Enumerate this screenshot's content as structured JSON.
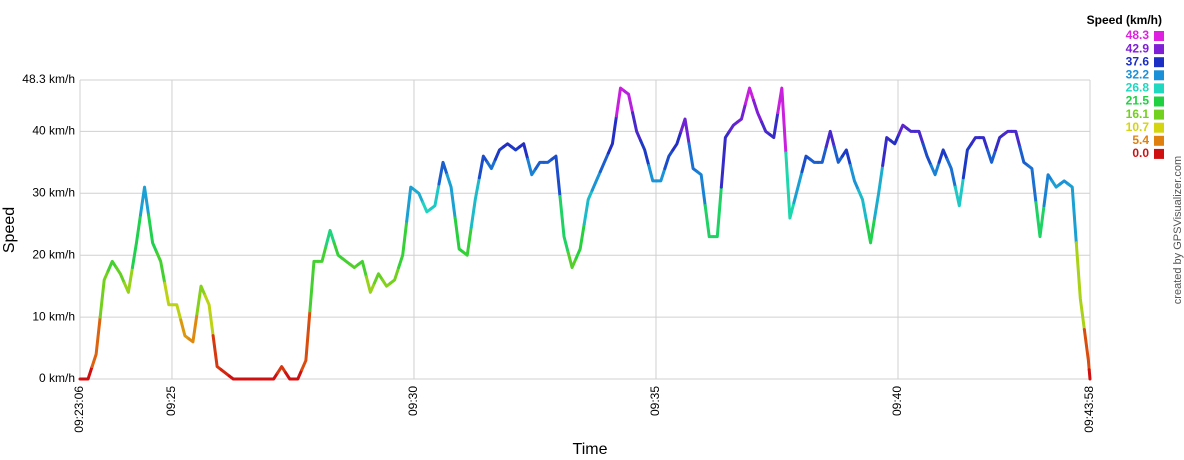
{
  "chart_data": {
    "type": "line",
    "x_label": "Time",
    "y_label": "Speed",
    "credit": "created by GPSVisualizer.com",
    "x": [
      "09:23:06",
      "09:23:16",
      "09:23:26",
      "09:23:36",
      "09:23:46",
      "09:23:56",
      "09:24:06",
      "09:24:16",
      "09:24:26",
      "09:24:36",
      "09:24:46",
      "09:24:56",
      "09:25:06",
      "09:25:16",
      "09:25:26",
      "09:25:36",
      "09:25:46",
      "09:25:56",
      "09:26:06",
      "09:26:16",
      "09:26:26",
      "09:26:36",
      "09:26:46",
      "09:26:56",
      "09:27:06",
      "09:27:16",
      "09:27:26",
      "09:27:36",
      "09:27:46",
      "09:27:56",
      "09:28:06",
      "09:28:16",
      "09:28:26",
      "09:28:36",
      "09:28:46",
      "09:28:56",
      "09:29:06",
      "09:29:16",
      "09:29:26",
      "09:29:36",
      "09:29:46",
      "09:29:56",
      "09:30:06",
      "09:30:16",
      "09:30:26",
      "09:30:36",
      "09:30:46",
      "09:30:56",
      "09:31:06",
      "09:31:16",
      "09:31:26",
      "09:31:36",
      "09:31:46",
      "09:31:56",
      "09:32:06",
      "09:32:16",
      "09:32:26",
      "09:32:36",
      "09:32:46",
      "09:32:56",
      "09:33:06",
      "09:33:16",
      "09:33:26",
      "09:33:36",
      "09:33:46",
      "09:33:56",
      "09:34:06",
      "09:34:16",
      "09:34:26",
      "09:34:36",
      "09:34:46",
      "09:34:56",
      "09:35:06",
      "09:35:16",
      "09:35:26",
      "09:35:36",
      "09:35:46",
      "09:35:56",
      "09:36:06",
      "09:36:16",
      "09:36:26",
      "09:36:36",
      "09:36:46",
      "09:36:56",
      "09:37:06",
      "09:37:16",
      "09:37:26",
      "09:37:36",
      "09:37:46",
      "09:37:56",
      "09:38:06",
      "09:38:16",
      "09:38:26",
      "09:38:36",
      "09:38:46",
      "09:38:56",
      "09:39:06",
      "09:39:16",
      "09:39:26",
      "09:39:36",
      "09:39:46",
      "09:39:56",
      "09:40:06",
      "09:40:16",
      "09:40:26",
      "09:40:36",
      "09:40:46",
      "09:40:56",
      "09:41:06",
      "09:41:16",
      "09:41:26",
      "09:41:36",
      "09:41:46",
      "09:41:56",
      "09:42:06",
      "09:42:16",
      "09:42:26",
      "09:42:36",
      "09:42:46",
      "09:42:56",
      "09:43:06",
      "09:43:16",
      "09:43:26",
      "09:43:36",
      "09:43:46",
      "09:43:56",
      "09:43:58"
    ],
    "values": [
      0,
      0,
      4,
      16,
      19,
      17,
      14,
      22,
      31,
      22,
      19,
      12,
      12,
      7,
      6,
      15,
      12,
      2,
      1,
      0,
      0,
      0,
      0,
      0,
      0,
      2,
      0,
      0,
      3,
      19,
      19,
      24,
      20,
      19,
      18,
      19,
      14,
      17,
      15,
      16,
      20,
      31,
      30,
      27,
      28,
      35,
      31,
      21,
      20,
      29,
      36,
      34,
      37,
      38,
      37,
      38,
      33,
      35,
      35,
      36,
      23,
      18,
      21,
      29,
      32,
      35,
      38,
      47,
      46,
      40,
      37,
      32,
      32,
      36,
      38,
      42,
      34,
      33,
      23,
      23,
      39,
      41,
      42,
      47,
      43,
      40,
      39,
      47,
      26,
      31,
      36,
      35,
      35,
      40,
      35,
      37,
      32,
      29,
      22,
      30,
      39,
      38,
      41,
      40,
      40,
      36,
      33,
      37,
      34,
      28,
      37,
      39,
      39,
      35,
      39,
      40,
      40,
      35,
      34,
      23,
      33,
      31,
      32,
      31,
      13,
      3,
      0
    ],
    "xlim": [
      "09:23:06",
      "09:43:58"
    ],
    "xticks": [
      "09:23:06",
      "09:25",
      "09:30",
      "09:35",
      "09:40",
      "09:43:58"
    ],
    "ylim": [
      0,
      48.3
    ],
    "yticks": [
      {
        "value": 0,
        "label": "0 km/h"
      },
      {
        "value": 10,
        "label": "10 km/h"
      },
      {
        "value": 20,
        "label": "20 km/h"
      },
      {
        "value": 30,
        "label": "30 km/h"
      },
      {
        "value": 40,
        "label": "40 km/h"
      },
      {
        "value": 48.3,
        "label": "48.3 km/h"
      }
    ],
    "grid": true,
    "legend_position": "right",
    "color_scale": {
      "title": "Speed (km/h)",
      "values": [
        48.3,
        42.9,
        37.6,
        32.2,
        26.8,
        21.5,
        16.1,
        10.7,
        5.4,
        {
          "value": 0,
          "label": "0.0"
        }
      ],
      "colors": [
        "#e020e0",
        "#7f1fd6",
        "#1c2fc4",
        "#1a90d8",
        "#1fd8c0",
        "#1fd040",
        "#72d01f",
        "#d4d40f",
        "#e0800f",
        "#d01010"
      ]
    }
  }
}
